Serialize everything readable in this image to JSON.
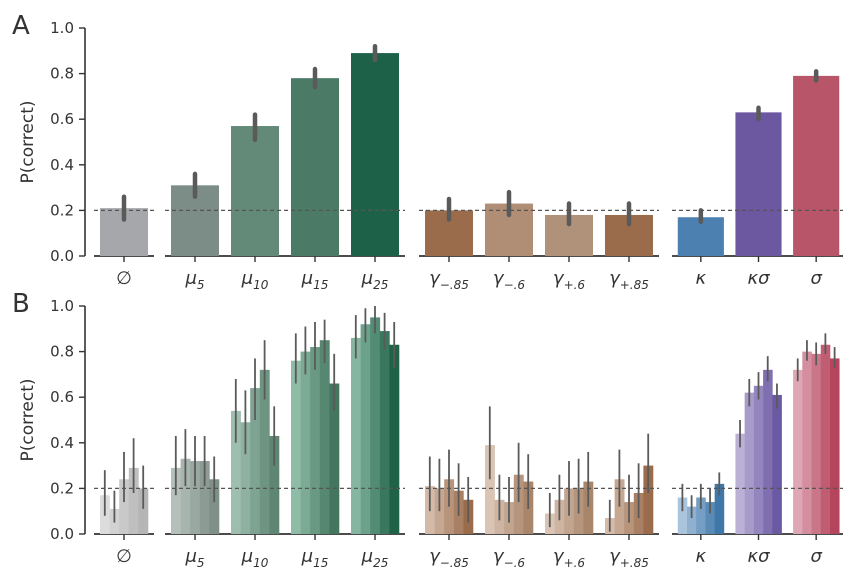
{
  "chart_data": [
    {
      "panel_label": "A",
      "type": "bar",
      "ylabel": "P(correct)",
      "ylim": [
        0,
        1.0
      ],
      "yticks": [
        "0.0",
        "0.2",
        "0.4",
        "0.6",
        "0.8",
        "1.0"
      ],
      "chance_line": 0.2,
      "groups": [
        {
          "bars": [
            {
              "label": "∅",
              "sub": "",
              "value": 0.21,
              "err": [
                0.16,
                0.26
              ],
              "color": "#a5a7aa"
            }
          ]
        },
        {
          "bars": [
            {
              "label": "μ",
              "sub": "5",
              "value": 0.31,
              "err": [
                0.26,
                0.36
              ],
              "color": "#7b8d86"
            },
            {
              "label": "μ",
              "sub": "10",
              "value": 0.57,
              "err": [
                0.51,
                0.62
              ],
              "color": "#638a78"
            },
            {
              "label": "μ",
              "sub": "15",
              "value": 0.78,
              "err": [
                0.74,
                0.82
              ],
              "color": "#4b7b66"
            },
            {
              "label": "μ",
              "sub": "25",
              "value": 0.89,
              "err": [
                0.86,
                0.92
              ],
              "color": "#1e6149"
            }
          ]
        },
        {
          "bars": [
            {
              "label": "γ",
              "sub": "−.85",
              "value": 0.2,
              "err": [
                0.16,
                0.25
              ],
              "color": "#9b6c4c"
            },
            {
              "label": "γ",
              "sub": "−.6",
              "value": 0.23,
              "err": [
                0.18,
                0.28
              ],
              "color": "#b08e75"
            },
            {
              "label": "γ",
              "sub": "+.6",
              "value": 0.18,
              "err": [
                0.14,
                0.23
              ],
              "color": "#b0917a"
            },
            {
              "label": "γ",
              "sub": "+.85",
              "value": 0.18,
              "err": [
                0.14,
                0.23
              ],
              "color": "#9b6c4c"
            }
          ]
        },
        {
          "bars": [
            {
              "label": "κ",
              "sub": "",
              "value": 0.17,
              "err": [
                0.15,
                0.2
              ],
              "color": "#4c80b0"
            },
            {
              "label": "κσ",
              "sub": "",
              "value": 0.63,
              "err": [
                0.6,
                0.65
              ],
              "color": "#6b58a0"
            },
            {
              "label": "σ",
              "sub": "",
              "value": 0.79,
              "err": [
                0.77,
                0.81
              ],
              "color": "#b85568"
            }
          ]
        }
      ]
    },
    {
      "panel_label": "B",
      "type": "bar",
      "ylabel": "P(correct)",
      "ylim": [
        0,
        1.0
      ],
      "yticks": [
        "0.0",
        "0.2",
        "0.4",
        "0.6",
        "0.8",
        "1.0"
      ],
      "chance_line": 0.2,
      "groups": [
        {
          "bars": [
            {
              "label": "∅",
              "sub": "",
              "palette": [
                "#dcdcdc",
                "#b5b5b5"
              ],
              "values": [
                0.17,
                0.11,
                0.24,
                0.29,
                0.2
              ],
              "errs": [
                [
                  0.08,
                  0.28
                ],
                [
                  0.05,
                  0.19
                ],
                [
                  0.14,
                  0.36
                ],
                [
                  0.18,
                  0.42
                ],
                [
                  0.11,
                  0.3
                ]
              ]
            }
          ]
        },
        {
          "bars": [
            {
              "label": "μ",
              "sub": "5",
              "palette": [
                "#b6c0bb",
                "#7e9088"
              ],
              "values": [
                0.29,
                0.33,
                0.32,
                0.32,
                0.24
              ],
              "errs": [
                [
                  0.17,
                  0.43
                ],
                [
                  0.21,
                  0.46
                ],
                [
                  0.21,
                  0.43
                ],
                [
                  0.21,
                  0.43
                ],
                [
                  0.14,
                  0.34
                ]
              ]
            },
            {
              "label": "μ",
              "sub": "10",
              "palette": [
                "#9ebfb0",
                "#5e8673"
              ],
              "values": [
                0.54,
                0.49,
                0.64,
                0.72,
                0.43
              ],
              "errs": [
                [
                  0.4,
                  0.68
                ],
                [
                  0.35,
                  0.63
                ],
                [
                  0.5,
                  0.77
                ],
                [
                  0.59,
                  0.85
                ],
                [
                  0.3,
                  0.56
                ]
              ]
            },
            {
              "label": "μ",
              "sub": "15",
              "palette": [
                "#8fbca7",
                "#43755f"
              ],
              "values": [
                0.76,
                0.8,
                0.82,
                0.85,
                0.66
              ],
              "errs": [
                [
                  0.66,
                  0.88
                ],
                [
                  0.7,
                  0.91
                ],
                [
                  0.72,
                  0.93
                ],
                [
                  0.75,
                  0.94
                ],
                [
                  0.54,
                  0.79
                ]
              ]
            },
            {
              "label": "μ",
              "sub": "25",
              "palette": [
                "#86b6a2",
                "#1f6248"
              ],
              "values": [
                0.86,
                0.92,
                0.95,
                0.89,
                0.83
              ],
              "errs": [
                [
                  0.77,
                  0.96
                ],
                [
                  0.84,
                  0.99
                ],
                [
                  0.88,
                  1.0
                ],
                [
                  0.81,
                  0.97
                ],
                [
                  0.73,
                  0.93
                ]
              ]
            }
          ]
        },
        {
          "bars": [
            {
              "label": "γ",
              "sub": "−.85",
              "palette": [
                "#d4bba9",
                "#9b6c4c"
              ],
              "values": [
                0.21,
                0.2,
                0.24,
                0.19,
                0.15
              ],
              "errs": [
                [
                  0.1,
                  0.34
                ],
                [
                  0.1,
                  0.33
                ],
                [
                  0.12,
                  0.37
                ],
                [
                  0.08,
                  0.31
                ],
                [
                  0.05,
                  0.25
                ]
              ]
            },
            {
              "label": "γ",
              "sub": "−.6",
              "palette": [
                "#dac4b4",
                "#a9856a"
              ],
              "values": [
                0.39,
                0.15,
                0.14,
                0.26,
                0.23
              ],
              "errs": [
                [
                  0.24,
                  0.56
                ],
                [
                  0.06,
                  0.26
                ],
                [
                  0.05,
                  0.25
                ],
                [
                  0.14,
                  0.4
                ],
                [
                  0.11,
                  0.35
                ]
              ]
            },
            {
              "label": "γ",
              "sub": "+.6",
              "palette": [
                "#dac4b4",
                "#a9856a"
              ],
              "values": [
                0.09,
                0.15,
                0.2,
                0.2,
                0.23
              ],
              "errs": [
                [
                  0.03,
                  0.18
                ],
                [
                  0.06,
                  0.26
                ],
                [
                  0.08,
                  0.32
                ],
                [
                  0.09,
                  0.33
                ],
                [
                  0.12,
                  0.36
                ]
              ]
            },
            {
              "label": "γ",
              "sub": "+.85",
              "palette": [
                "#d4bba9",
                "#9b6c4c"
              ],
              "values": [
                0.07,
                0.24,
                0.14,
                0.18,
                0.3
              ],
              "errs": [
                [
                  0.01,
                  0.15
                ],
                [
                  0.12,
                  0.37
                ],
                [
                  0.05,
                  0.26
                ],
                [
                  0.07,
                  0.31
                ],
                [
                  0.18,
                  0.44
                ]
              ]
            }
          ]
        },
        {
          "bars": [
            {
              "label": "κ",
              "sub": "",
              "palette": [
                "#a9c4dc",
                "#3f77a9"
              ],
              "values": [
                0.16,
                0.12,
                0.16,
                0.14,
                0.22
              ],
              "errs": [
                [
                  0.1,
                  0.22
                ],
                [
                  0.07,
                  0.17
                ],
                [
                  0.11,
                  0.22
                ],
                [
                  0.09,
                  0.2
                ],
                [
                  0.17,
                  0.27
                ]
              ]
            },
            {
              "label": "κσ",
              "sub": "",
              "palette": [
                "#bbb1d6",
                "#6b59a3"
              ],
              "values": [
                0.44,
                0.62,
                0.65,
                0.72,
                0.61
              ],
              "errs": [
                [
                  0.38,
                  0.5
                ],
                [
                  0.56,
                  0.68
                ],
                [
                  0.59,
                  0.71
                ],
                [
                  0.67,
                  0.78
                ],
                [
                  0.55,
                  0.66
                ]
              ]
            },
            {
              "label": "σ",
              "sub": "",
              "palette": [
                "#dfa7b5",
                "#b5445d"
              ],
              "values": [
                0.72,
                0.8,
                0.79,
                0.83,
                0.77
              ],
              "errs": [
                [
                  0.67,
                  0.77
                ],
                [
                  0.76,
                  0.85
                ],
                [
                  0.74,
                  0.84
                ],
                [
                  0.79,
                  0.88
                ],
                [
                  0.73,
                  0.82
                ]
              ]
            }
          ]
        }
      ]
    }
  ]
}
